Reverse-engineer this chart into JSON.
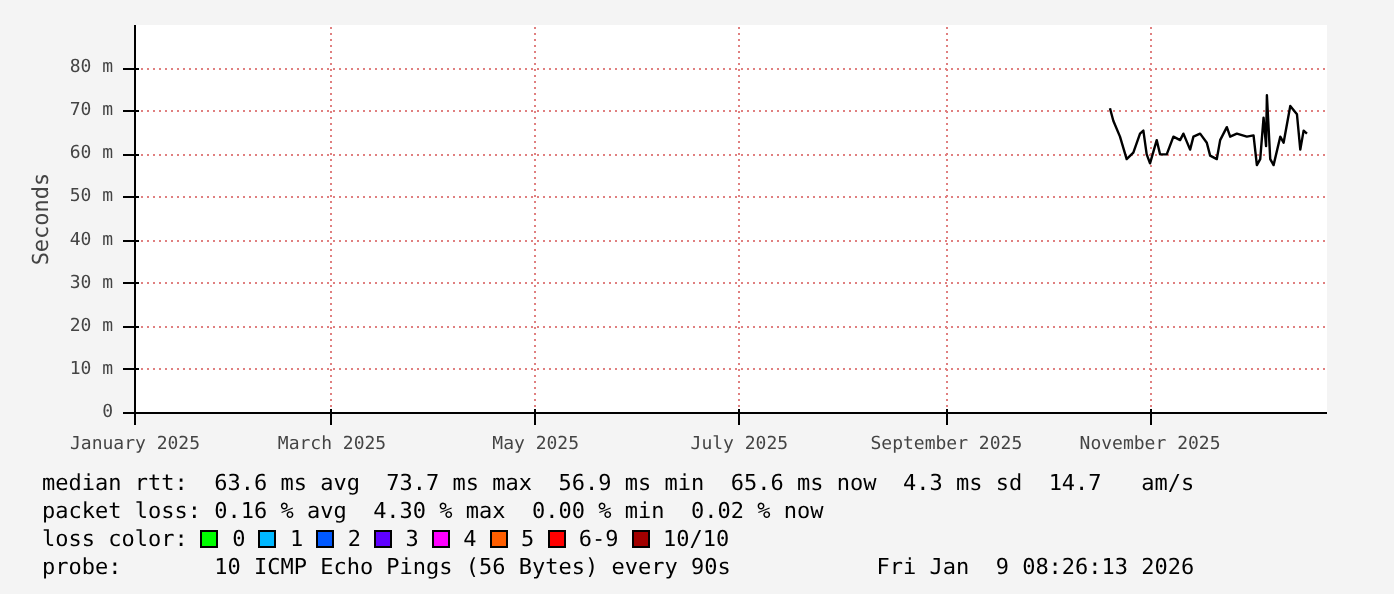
{
  "chart_data": {
    "type": "line",
    "ylabel": "Seconds",
    "x": [
      "2025-10-20",
      "2025-10-21",
      "2025-10-23",
      "2025-10-25",
      "2025-10-27",
      "2025-10-29",
      "2025-10-30",
      "2025-10-31",
      "2025-11-01",
      "2025-11-03",
      "2025-11-04",
      "2025-11-06",
      "2025-11-08",
      "2025-11-10",
      "2025-11-11",
      "2025-11-13",
      "2025-11-14",
      "2025-11-16",
      "2025-11-18",
      "2025-11-19",
      "2025-11-21",
      "2025-11-22",
      "2025-11-24",
      "2025-11-25",
      "2025-11-27",
      "2025-11-30",
      "2025-12-02",
      "2025-12-03",
      "2025-12-04",
      "2025-12-05",
      "2025-12-05T18:00",
      "2025-12-06",
      "2025-12-07",
      "2025-12-08",
      "2025-12-10",
      "2025-12-11",
      "2025-12-13",
      "2025-12-15",
      "2025-12-16",
      "2025-12-17",
      "2025-12-18"
    ],
    "series": [
      {
        "color": "#000000",
        "values": [
          70.7,
          67.8,
          64.1,
          58.9,
          60.4,
          64.8,
          65.5,
          60.0,
          57.9,
          63.3,
          60.0,
          60.0,
          64.1,
          63.3,
          64.8,
          61.1,
          64.1,
          64.8,
          62.7,
          59.7,
          58.9,
          63.3,
          66.3,
          64.1,
          64.8,
          64.1,
          64.4,
          57.5,
          58.9,
          68.5,
          61.9,
          73.7,
          58.9,
          57.5,
          64.1,
          62.7,
          71.2,
          69.3,
          61.1,
          65.5,
          64.8
        ]
      }
    ],
    "xlim": [
      "2025-01-01",
      "2025-12-24"
    ],
    "xticks": [
      {
        "value": "2025-01-01",
        "label": "January 2025"
      },
      {
        "value": "2025-03-01",
        "label": "March 2025"
      },
      {
        "value": "2025-05-01",
        "label": "May 2025"
      },
      {
        "value": "2025-07-01",
        "label": "July 2025"
      },
      {
        "value": "2025-09-01",
        "label": "September 2025"
      },
      {
        "value": "2025-11-01",
        "label": "November 2025"
      }
    ],
    "ylim": [
      0,
      90
    ],
    "yticks": [
      0,
      {
        "value": 10,
        "label": "10 m"
      },
      {
        "value": 20,
        "label": "20 m"
      },
      {
        "value": 30,
        "label": "30 m"
      },
      {
        "value": 40,
        "label": "40 m"
      },
      {
        "value": 50,
        "label": "50 m"
      },
      {
        "value": 60,
        "label": "60 m"
      },
      {
        "value": 70,
        "label": "70 m"
      },
      {
        "value": 80,
        "label": "80 m"
      }
    ],
    "grid": true,
    "marker": "none",
    "line_style": "solid",
    "annotations": [
      "median rtt:  63.6 ms avg  73.7 ms max  56.9 ms min  65.6 ms now  4.3 ms sd  14.7   am/s",
      "packet loss: 0.16 % avg  4.30 % max  0.00 % min  0.02 % now",
      "loss color: 0 1 2 3 4 5 6-9 10/10",
      "probe:       10 ICMP Echo Pings (56 Bytes) every 90s",
      "Fri Jan  9 08:26:13 2026"
    ]
  }
}
